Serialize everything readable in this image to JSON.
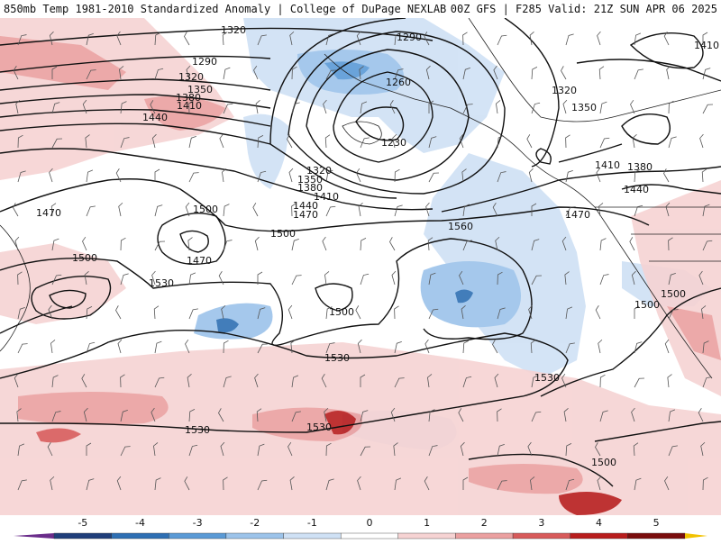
{
  "header": {
    "left": "850mb Temp 1981-2010 Standardized Anomaly | College of DuPage NEXLAB",
    "right": "00Z GFS | F285 Valid: 21Z SUN APR 06 2025"
  },
  "legend": {
    "ticks": [
      "-5",
      "-4",
      "-3",
      "-2",
      "-1",
      "0",
      "1",
      "2",
      "3",
      "4",
      "5"
    ],
    "colors": [
      "#6a2c8a",
      "#1f3e7a",
      "#2e6fb3",
      "#5a9ad6",
      "#9cc3ea",
      "#cfe1f5",
      "#ffffff",
      "#f6d3d3",
      "#eba0a0",
      "#d85a5a",
      "#b81d1d",
      "#7a0d0d",
      "#f2c200"
    ]
  },
  "contours": [
    {
      "label": "1320",
      "id": "c1320a"
    },
    {
      "label": "1290",
      "id": "c1290a"
    },
    {
      "label": "1320",
      "id": "c1320b"
    },
    {
      "label": "1350",
      "id": "c1350a"
    },
    {
      "label": "1380",
      "id": "c1380a"
    },
    {
      "label": "1410",
      "id": "c1410a"
    },
    {
      "label": "1440",
      "id": "c1440a"
    },
    {
      "label": "1260",
      "id": "c1260"
    },
    {
      "label": "1230",
      "id": "c1230"
    },
    {
      "label": "1290",
      "id": "c1290b"
    },
    {
      "label": "1320",
      "id": "c1320c"
    },
    {
      "label": "1350",
      "id": "c1350b"
    },
    {
      "label": "1380",
      "id": "c1380b"
    },
    {
      "label": "1410",
      "id": "c1410b"
    },
    {
      "label": "1440",
      "id": "c1440b"
    },
    {
      "label": "1470",
      "id": "c1470a"
    },
    {
      "label": "1500",
      "id": "c1500a"
    },
    {
      "label": "1470",
      "id": "c1470b"
    },
    {
      "label": "1500",
      "id": "c1500b"
    },
    {
      "label": "1530",
      "id": "c1530a"
    },
    {
      "label": "1500",
      "id": "c1500c"
    },
    {
      "label": "1560",
      "id": "c1560"
    },
    {
      "label": "1500",
      "id": "c1500d"
    },
    {
      "label": "1530",
      "id": "c1530b"
    },
    {
      "label": "1530",
      "id": "c1530c"
    },
    {
      "label": "1530",
      "id": "c1530d"
    },
    {
      "label": "1530",
      "id": "c1530e"
    },
    {
      "label": "1500",
      "id": "c1500e"
    },
    {
      "label": "1500",
      "id": "c1500f"
    },
    {
      "label": "1500",
      "id": "c1500g"
    },
    {
      "label": "1470",
      "id": "c1470c"
    },
    {
      "label": "1470",
      "id": "c1470d"
    },
    {
      "label": "1440",
      "id": "c1440c"
    },
    {
      "label": "1410",
      "id": "c1410c"
    },
    {
      "label": "1380",
      "id": "c1380c"
    },
    {
      "label": "1350",
      "id": "c1350c"
    },
    {
      "label": "1320",
      "id": "c1320d"
    },
    {
      "label": "1410",
      "id": "c1410d"
    }
  ]
}
